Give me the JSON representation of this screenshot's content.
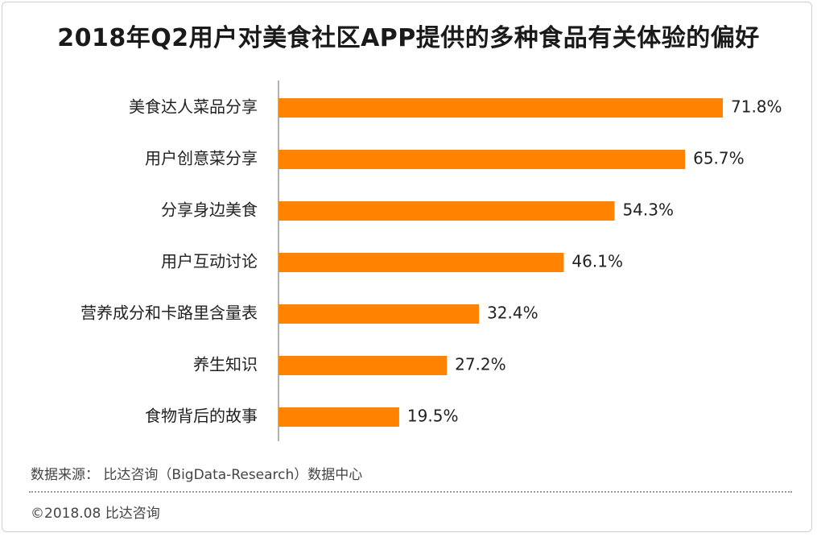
{
  "title": "2018年Q2用户对美食社区APP提供的多种食品有关体验的偏好",
  "chart_data": {
    "type": "bar",
    "orientation": "horizontal",
    "categories": [
      "美食达人菜品分享",
      "用户创意菜分享",
      "分享身边美食",
      "用户互动讨论",
      "营养成分和卡路里含量表",
      "养生知识",
      "食物背后的故事"
    ],
    "values": [
      71.8,
      65.7,
      54.3,
      46.1,
      32.4,
      27.2,
      19.5
    ],
    "value_labels": [
      "71.8%",
      "65.7%",
      "54.3%",
      "46.1%",
      "32.4%",
      "27.2%",
      "19.5%"
    ],
    "unit": "%",
    "xlim": [
      0,
      75
    ],
    "grid": false,
    "color": "#FF8200"
  },
  "footer": {
    "source": "数据来源： 比达咨询（BigData-Research）数据中心",
    "copyright": "©2018.08  比达咨询"
  }
}
